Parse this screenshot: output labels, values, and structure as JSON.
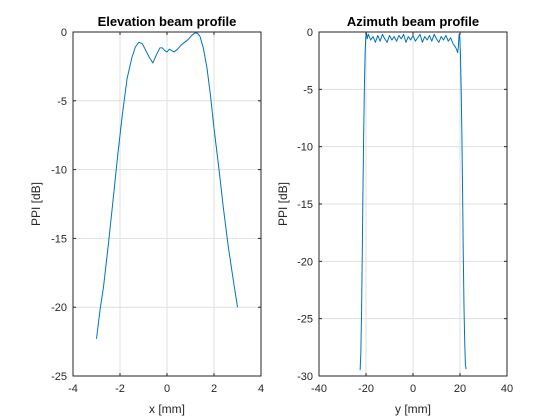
{
  "chart_data": [
    {
      "type": "line",
      "title": "Elevation beam profile",
      "xlabel": "x [mm]",
      "ylabel": "PPI [dB]",
      "xlim": [
        -4,
        4
      ],
      "ylim": [
        -25,
        0
      ],
      "xticks": [
        -4,
        -2,
        0,
        2,
        4
      ],
      "yticks": [
        -25,
        -20,
        -15,
        -10,
        -5,
        0
      ],
      "xtick_labels": [
        "-4",
        "-2",
        "0",
        "2",
        "4"
      ],
      "ytick_labels": [
        "-25",
        "-20",
        "-15",
        "-10",
        "-5",
        "0"
      ],
      "grid": true,
      "line_color": "#0072BD",
      "series": [
        {
          "x": [
            -3,
            -2.85,
            -2.7,
            -2.5,
            -2.3,
            -2.1,
            -1.9,
            -1.7,
            -1.5,
            -1.35,
            -1.2,
            -1.05,
            -0.9,
            -0.75,
            -0.6,
            -0.45,
            -0.3,
            -0.2,
            -0.1,
            0,
            0.1,
            0.2,
            0.3,
            0.45,
            0.6,
            0.75,
            0.9,
            1.05,
            1.2,
            1.3,
            1.4,
            1.55,
            1.7,
            1.85,
            2.0,
            2.2,
            2.4,
            2.6,
            2.8,
            3.0
          ],
          "y": [
            -22.3,
            -20.2,
            -18.5,
            -15.5,
            -12.3,
            -9.0,
            -6.0,
            -3.4,
            -1.9,
            -1.1,
            -0.75,
            -0.85,
            -1.35,
            -1.85,
            -2.25,
            -1.65,
            -1.15,
            -1.15,
            -1.35,
            -1.45,
            -1.25,
            -1.35,
            -1.45,
            -1.25,
            -0.95,
            -0.75,
            -0.55,
            -0.25,
            -0.05,
            -0.1,
            -0.3,
            -1.2,
            -2.6,
            -4.6,
            -7.0,
            -9.8,
            -12.8,
            -15.5,
            -17.8,
            -20.0
          ]
        }
      ]
    },
    {
      "type": "line",
      "title": "Azimuth beam profile",
      "xlabel": "y [mm]",
      "ylabel": "PPI [dB]",
      "xlim": [
        -40,
        40
      ],
      "ylim": [
        -30,
        0
      ],
      "xticks": [
        -40,
        -20,
        0,
        20,
        40
      ],
      "yticks": [
        -30,
        -25,
        -20,
        -15,
        -10,
        -5,
        0
      ],
      "xtick_labels": [
        "-40",
        "-20",
        "0",
        "20",
        "40"
      ],
      "ytick_labels": [
        "-30",
        "-25",
        "-20",
        "-15",
        "-10",
        "-5",
        "0"
      ],
      "grid": true,
      "line_color": "#0072BD",
      "series": [
        {
          "x": [
            -22.5,
            -22.2,
            -21.9,
            -21.6,
            -21.3,
            -21.0,
            -20.7,
            -20.4,
            -20.1,
            -19.8,
            -19.5,
            -19,
            -18,
            -17,
            -16,
            -15,
            -14,
            -13,
            -12,
            -11,
            -10,
            -9,
            -8,
            -7,
            -6,
            -5,
            -4,
            -3,
            -2,
            -1,
            0,
            1,
            2,
            3,
            4,
            5,
            6,
            7,
            8,
            9,
            10,
            11,
            12,
            13,
            14,
            15,
            16,
            17,
            18,
            18.5,
            19.0,
            19.3,
            19.6,
            19.9,
            20.2,
            20.5,
            20.8,
            21.1,
            21.4,
            21.7,
            22.0,
            22.3,
            22.6
          ],
          "y": [
            -29.5,
            -28.0,
            -24.5,
            -19.5,
            -14.0,
            -9.0,
            -5.0,
            -2.0,
            -0.4,
            -0.1,
            -0.6,
            -0.2,
            -0.7,
            -0.4,
            -0.9,
            -0.3,
            -0.8,
            -0.2,
            -0.6,
            -0.9,
            -0.3,
            -0.7,
            -0.4,
            -0.8,
            -0.3,
            -0.6,
            -0.2,
            -0.9,
            -0.4,
            -0.7,
            -0.3,
            -0.8,
            -0.5,
            -0.2,
            -0.9,
            -0.4,
            -0.7,
            -0.3,
            -0.8,
            -0.2,
            -0.6,
            -0.9,
            -0.4,
            -0.7,
            -0.3,
            -0.8,
            -0.5,
            -1.0,
            -1.3,
            -1.5,
            -1.8,
            -1.3,
            -0.2,
            -0.4,
            -2.0,
            -5.0,
            -9.0,
            -14.0,
            -19.5,
            -24.0,
            -27.0,
            -29.0,
            -29.4
          ]
        }
      ]
    }
  ]
}
